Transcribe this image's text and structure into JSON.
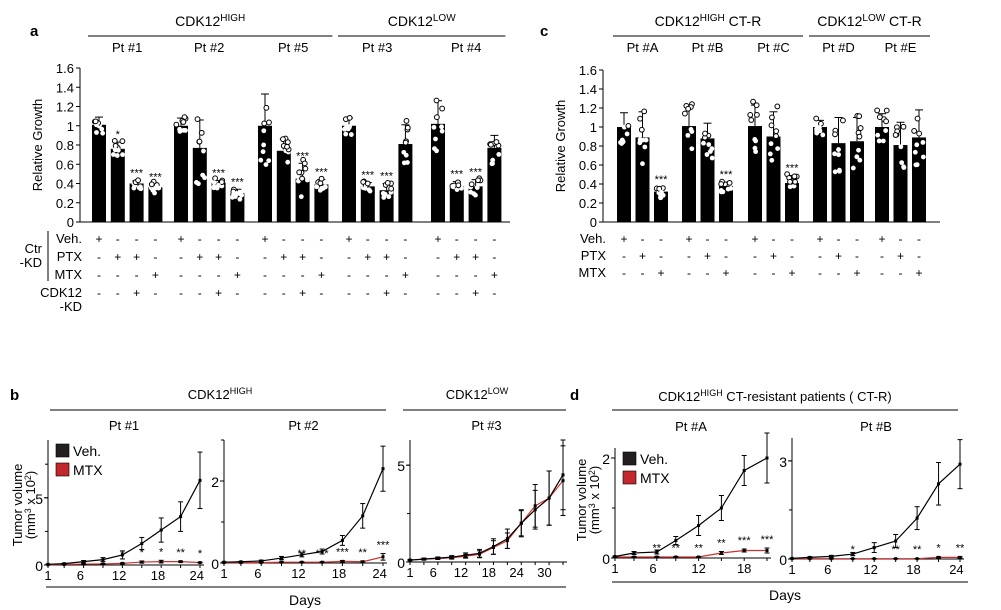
{
  "figure": {
    "panel_labels": [
      "a",
      "b",
      "c",
      "d"
    ]
  },
  "chart_data": [
    {
      "panel": "a",
      "type": "bar",
      "ylabel": "Relative Growth",
      "ylim": [
        0,
        1.6
      ],
      "yticks": [
        "0",
        "0.2",
        "0.4",
        "0.6",
        "0.8",
        "1",
        "1.2",
        "1.4",
        "1.6"
      ],
      "groups": [
        {
          "label": "CDK12",
          "sup": "HIGH",
          "patients": [
            "Pt #1",
            "Pt #2",
            "Pt #5"
          ]
        },
        {
          "label": "CDK12",
          "sup": "LOW",
          "patients": [
            "Pt #3",
            "Pt #4"
          ]
        }
      ],
      "patients": [
        {
          "name": "Pt #1",
          "values": [
            1.01,
            0.76,
            0.4,
            0.36
          ],
          "errors": [
            0.08,
            0.07,
            0.03,
            0.03
          ],
          "sig": [
            "",
            "*",
            "***",
            "***"
          ]
        },
        {
          "name": "Pt #2",
          "values": [
            1.0,
            0.77,
            0.41,
            0.3
          ],
          "errors": [
            0.08,
            0.29,
            0.02,
            0.04
          ],
          "sig": [
            "",
            "",
            "***",
            "***"
          ]
        },
        {
          "name": "Pt #5",
          "values": [
            1.0,
            0.74,
            0.45,
            0.39
          ],
          "errors": [
            0.33,
            0.12,
            0.16,
            0.05
          ],
          "sig": [
            "",
            "",
            "***",
            "***"
          ]
        },
        {
          "name": "Pt #3",
          "values": [
            1.0,
            0.37,
            0.33,
            0.81
          ],
          "errors": [
            0.08,
            0.04,
            0.07,
            0.2
          ],
          "sig": [
            "",
            "***",
            "***",
            ""
          ]
        },
        {
          "name": "Pt #4",
          "values": [
            1.02,
            0.37,
            0.37,
            0.77
          ],
          "errors": [
            0.24,
            0.05,
            0.07,
            0.13
          ],
          "sig": [
            "",
            "***",
            "***",
            ""
          ]
        }
      ],
      "treatment_rows": [
        {
          "label": "Veh.",
          "pattern": [
            "+",
            "-",
            "-",
            "-"
          ]
        },
        {
          "label": "PTX",
          "pattern": [
            "-",
            "+",
            "+",
            "-"
          ]
        },
        {
          "label": "MTX",
          "pattern": [
            "-",
            "-",
            "-",
            "+"
          ]
        },
        {
          "label": "CDK12\n-KD",
          "pattern": [
            "-",
            "-",
            "+",
            "-"
          ]
        }
      ],
      "bracket_label": "Ctr\n-KD"
    },
    {
      "panel": "c",
      "type": "bar",
      "ylabel": "Relative Growth",
      "ylim": [
        0,
        1.6
      ],
      "yticks": [
        "0",
        "0.2",
        "0.4",
        "0.6",
        "0.8",
        "1",
        "1.2",
        "1.4",
        "1.6"
      ],
      "groups": [
        {
          "label": "CDK12",
          "sup": "HIGH",
          "suffix": " CT-R",
          "patients": [
            "Pt #A",
            "Pt #B",
            "Pt #C"
          ]
        },
        {
          "label": "CDK12",
          "sup": "LOW",
          "suffix": " CT-R",
          "patients": [
            "Pt #D",
            "Pt #E"
          ]
        }
      ],
      "patients": [
        {
          "name": "Pt #A",
          "values": [
            1.0,
            0.89,
            0.32
          ],
          "errors": [
            0.15,
            0.27,
            0.05
          ],
          "sig": [
            "",
            "",
            "***"
          ]
        },
        {
          "name": "Pt #B",
          "values": [
            1.01,
            0.88,
            0.38
          ],
          "errors": [
            0.19,
            0.16,
            0.04
          ],
          "sig": [
            "",
            "",
            "***"
          ]
        },
        {
          "name": "Pt #C",
          "values": [
            1.01,
            0.9,
            0.41
          ],
          "errors": [
            0.22,
            0.26,
            0.08
          ],
          "sig": [
            "",
            "",
            "***"
          ]
        },
        {
          "name": "Pt #D",
          "values": [
            1.0,
            0.83,
            0.85
          ],
          "errors": [
            0.07,
            0.27,
            0.25
          ],
          "sig": [
            "",
            "",
            ""
          ]
        },
        {
          "name": "Pt #E",
          "values": [
            1.0,
            0.81,
            0.89
          ],
          "errors": [
            0.14,
            0.24,
            0.29
          ],
          "sig": [
            "",
            "",
            ""
          ]
        }
      ],
      "treatment_rows": [
        {
          "label": "Veh.",
          "pattern": [
            "+",
            "-",
            "-"
          ]
        },
        {
          "label": "PTX",
          "pattern": [
            "-",
            "+",
            "-"
          ]
        },
        {
          "label": "MTX",
          "pattern": [
            "-",
            "-",
            "+"
          ]
        }
      ]
    },
    {
      "panel": "b",
      "type": "line",
      "xlabel": "Days",
      "ylabel": "Tumor volume\n(mm3 x 102)",
      "groups": [
        {
          "label": "CDK12",
          "sup": "HIGH",
          "patients": [
            "Pt #1",
            "Pt #2"
          ]
        },
        {
          "label": "CDK12",
          "sup": "LOW",
          "patients": [
            "Pt #3"
          ]
        }
      ],
      "legend": [
        {
          "name": "Veh.",
          "color": "#231f20"
        },
        {
          "name": "MTX",
          "color": "#c1272d"
        }
      ],
      "subplots": [
        {
          "title": "Pt #1",
          "xticks": [
            1,
            6,
            12,
            18,
            24
          ],
          "xlim": [
            1,
            24.5
          ],
          "yticks": [
            0,
            5
          ],
          "ylim": [
            0,
            9.3
          ],
          "x": [
            1,
            3.5,
            6.5,
            9.5,
            12.5,
            15.5,
            18.5,
            21.5,
            24.5
          ],
          "series": [
            {
              "name": "Veh.",
              "values": [
                0.05,
                0.1,
                0.25,
                0.4,
                0.75,
                1.6,
                2.6,
                3.6,
                6.3
              ],
              "errors": [
                0.02,
                0.03,
                0.08,
                0.15,
                0.3,
                0.45,
                0.9,
                1.1,
                2.1
              ]
            },
            {
              "name": "MTX",
              "values": [
                0.02,
                0.04,
                0.07,
                0.08,
                0.12,
                0.22,
                0.25,
                0.25,
                0.18
              ],
              "errors": [
                0.01,
                0.01,
                0.02,
                0.03,
                0.04,
                0.08,
                0.1,
                0.05,
                0.03
              ]
            }
          ],
          "sig": [
            "",
            "",
            "",
            "",
            "*",
            "*",
            "*",
            "**",
            "*"
          ]
        },
        {
          "title": "Pt #2",
          "xticks": [
            1,
            6,
            12,
            18,
            24
          ],
          "xlim": [
            1,
            24.5
          ],
          "yticks": [
            0,
            2
          ],
          "ylim": [
            0,
            3
          ],
          "x": [
            1,
            3.5,
            6.5,
            9.5,
            12.5,
            15.5,
            18.5,
            21.5,
            24.5
          ],
          "series": [
            {
              "name": "Veh.",
              "values": [
                0.02,
                0.03,
                0.05,
                0.12,
                0.2,
                0.28,
                0.55,
                1.15,
                2.3
              ],
              "errors": [
                0.01,
                0.01,
                0.02,
                0.04,
                0.05,
                0.06,
                0.12,
                0.3,
                0.55
              ]
            },
            {
              "name": "MTX",
              "values": [
                0.01,
                0.01,
                0.01,
                0.02,
                0.02,
                0.02,
                0.04,
                0.03,
                0.15
              ],
              "errors": [
                0.005,
                0.005,
                0.005,
                0.01,
                0.01,
                0.01,
                0.02,
                0.02,
                0.08
              ]
            }
          ],
          "sig": [
            "",
            "",
            "",
            "",
            "**",
            "***",
            "***",
            "**",
            "***"
          ]
        },
        {
          "title": "Pt #3",
          "xticks": [
            1,
            6,
            12,
            18,
            24,
            30
          ],
          "xlim": [
            1,
            34
          ],
          "yticks": [
            0,
            5
          ],
          "ylim": [
            0,
            6.3
          ],
          "x": [
            1,
            4,
            7,
            10,
            13,
            16,
            19,
            22,
            25,
            28,
            31,
            34
          ],
          "series": [
            {
              "name": "Veh.",
              "values": [
                0.1,
                0.15,
                0.2,
                0.25,
                0.35,
                0.45,
                0.8,
                1.2,
                2.0,
                2.7,
                3.3,
                4.5
              ],
              "errors": [
                0.03,
                0.05,
                0.06,
                0.08,
                0.12,
                0.2,
                0.4,
                0.5,
                0.7,
                1.0,
                1.4,
                1.8
              ]
            },
            {
              "name": "MTX",
              "values": [
                0.1,
                0.15,
                0.18,
                0.22,
                0.3,
                0.4,
                0.75,
                1.1,
                2.0,
                2.9,
                3.3,
                4.2
              ],
              "errors": [
                0.03,
                0.04,
                0.05,
                0.07,
                0.1,
                0.18,
                0.35,
                0.4,
                0.65,
                1.1,
                1.4,
                1.8
              ]
            }
          ],
          "sig": []
        }
      ]
    },
    {
      "panel": "d",
      "type": "line",
      "xlabel": "Days",
      "ylabel": "Tumor volume\n(mm3 x 102)",
      "group_title": {
        "label": "CDK12",
        "sup": "HIGH",
        "suffix": " CT-resistant patients ( CT-R)"
      },
      "legend": [
        {
          "name": "Veh.",
          "color": "#231f20"
        },
        {
          "name": "MTX",
          "color": "#c1272d"
        }
      ],
      "subplots": [
        {
          "title": "Pt #A",
          "xticks": [
            1,
            6,
            12,
            18
          ],
          "xlim": [
            1,
            21
          ],
          "yticks": [
            0,
            2
          ],
          "ylim": [
            0,
            2.2
          ],
          "x": [
            1,
            3.5,
            6.5,
            9,
            12,
            15,
            18,
            21
          ],
          "series": [
            {
              "name": "Veh.",
              "values": [
                0.03,
                0.1,
                0.12,
                0.35,
                0.65,
                1.0,
                1.75,
                2.0
              ],
              "errors": [
                0.01,
                0.03,
                0.04,
                0.08,
                0.2,
                0.25,
                0.3,
                0.5
              ]
            },
            {
              "name": "MTX",
              "values": [
                0.02,
                0.02,
                0.02,
                0.02,
                0.02,
                0.1,
                0.15,
                0.15
              ],
              "errors": [
                0.01,
                0.01,
                0.01,
                0.01,
                0.01,
                0.03,
                0.03,
                0.05
              ]
            }
          ],
          "sig": [
            "",
            "",
            "**",
            "**",
            "**",
            "**",
            "***",
            "***"
          ]
        },
        {
          "title": "Pt #B",
          "xticks": [
            1,
            6,
            12,
            18,
            24
          ],
          "xlim": [
            1,
            24.5
          ],
          "yticks": [
            0,
            3
          ],
          "ylim": [
            0,
            3.7
          ],
          "x": [
            1,
            3.5,
            6.5,
            9.5,
            12.5,
            15.5,
            18.5,
            21.5,
            24.5
          ],
          "series": [
            {
              "name": "Veh.",
              "values": [
                0.02,
                0.05,
                0.08,
                0.15,
                0.35,
                0.55,
                1.25,
                2.3,
                2.9
              ],
              "errors": [
                0.01,
                0.02,
                0.03,
                0.05,
                0.15,
                0.2,
                0.35,
                0.65,
                0.75
              ]
            },
            {
              "name": "MTX",
              "values": [
                0.01,
                0.01,
                0.01,
                0.01,
                0.01,
                0.01,
                0.01,
                0.05,
                0.05
              ],
              "errors": [
                0.005,
                0.005,
                0.005,
                0.005,
                0.005,
                0.005,
                0.005,
                0.02,
                0.02
              ]
            }
          ],
          "sig": [
            "",
            "",
            "",
            "*",
            "*",
            "**",
            "**",
            "*",
            "**"
          ]
        }
      ]
    }
  ]
}
